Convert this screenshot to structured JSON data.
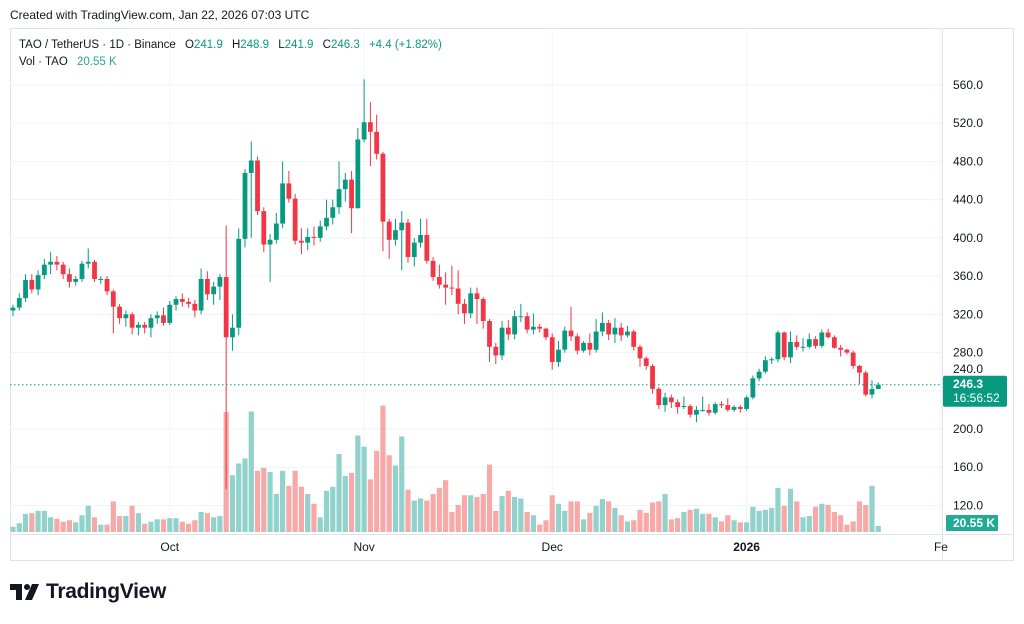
{
  "credit": "Created with TradingView.com, Jan 22, 2026 07:03 UTC",
  "legend": {
    "symbol": "TAO / TetherUS · 1D · Binance",
    "o_label": "O",
    "o": "241.9",
    "h_label": "H",
    "h": "248.9",
    "l_label": "L",
    "l": "241.9",
    "c_label": "C",
    "c": "246.3",
    "change": "+4.4 (+1.82%)",
    "vol_label": "Vol · TAO",
    "vol": "20.55 K"
  },
  "price_tag": {
    "price": "246.3",
    "countdown": "16:56:52"
  },
  "volume_tag": "20.55 K",
  "logo_text": "TradingView",
  "colors": {
    "up": "#089981",
    "down": "#F23645",
    "vol_up": "#92d2cc",
    "vol_down": "#f7a9a7",
    "grid": "#f0f3fa"
  },
  "chart_data": {
    "type": "candlestick",
    "start_date": "2025-09-06",
    "interval": "1D",
    "ylim": [
      110,
      580
    ],
    "y_ticks": [
      "560.0",
      "520.0",
      "480.0",
      "440.0",
      "400.0",
      "360.0",
      "320.0",
      "280.0",
      "240.0",
      "200.0",
      "160.0",
      "120.0"
    ],
    "x_ticks": [
      {
        "label": "Oct",
        "date": "2025-10-01",
        "bold": false
      },
      {
        "label": "Nov",
        "date": "2025-11-01",
        "bold": false
      },
      {
        "label": "Dec",
        "date": "2025-12-01",
        "bold": false
      },
      {
        "label": "2026",
        "date": "2026-01-01",
        "bold": true
      },
      {
        "label": "Fe",
        "date": "2026-02-01",
        "bold": false
      }
    ],
    "last_price": 246.3,
    "ohlc": [
      [
        324,
        330,
        318,
        327
      ],
      [
        327,
        342,
        324,
        337
      ],
      [
        337,
        362,
        333,
        356
      ],
      [
        356,
        362,
        342,
        346
      ],
      [
        346,
        366,
        340,
        361
      ],
      [
        361,
        378,
        357,
        372
      ],
      [
        372,
        385,
        362,
        375
      ],
      [
        375,
        381,
        366,
        372
      ],
      [
        372,
        375,
        357,
        362
      ],
      [
        362,
        368,
        348,
        354
      ],
      [
        354,
        360,
        350,
        357
      ],
      [
        357,
        376,
        354,
        373
      ],
      [
        373,
        389,
        368,
        375
      ],
      [
        375,
        377,
        354,
        357
      ],
      [
        357,
        360,
        352,
        357
      ],
      [
        357,
        360,
        340,
        344
      ],
      [
        344,
        346,
        300,
        328
      ],
      [
        328,
        331,
        310,
        316
      ],
      [
        316,
        324,
        307,
        320
      ],
      [
        320,
        322,
        299,
        306
      ],
      [
        306,
        312,
        298,
        309
      ],
      [
        309,
        312,
        300,
        306
      ],
      [
        306,
        320,
        296,
        316
      ],
      [
        316,
        323,
        310,
        319
      ],
      [
        319,
        327,
        308,
        311
      ],
      [
        311,
        334,
        309,
        330
      ],
      [
        330,
        339,
        324,
        336
      ],
      [
        336,
        342,
        328,
        333
      ],
      [
        333,
        337,
        327,
        331
      ],
      [
        331,
        335,
        317,
        324
      ],
      [
        324,
        368,
        320,
        357
      ],
      [
        357,
        365,
        335,
        341
      ],
      [
        341,
        354,
        330,
        349
      ],
      [
        349,
        362,
        335,
        359
      ],
      [
        359,
        413,
        137,
        296
      ],
      [
        296,
        320,
        282,
        306
      ],
      [
        306,
        410,
        298,
        399
      ],
      [
        399,
        472,
        390,
        468
      ],
      [
        468,
        501,
        400,
        481
      ],
      [
        481,
        485,
        424,
        428
      ],
      [
        428,
        432,
        385,
        393
      ],
      [
        393,
        404,
        354,
        398
      ],
      [
        398,
        426,
        394,
        415
      ],
      [
        415,
        480,
        410,
        457
      ],
      [
        457,
        470,
        437,
        441
      ],
      [
        441,
        446,
        393,
        397
      ],
      [
        397,
        410,
        383,
        395
      ],
      [
        395,
        410,
        387,
        401
      ],
      [
        401,
        412,
        392,
        400
      ],
      [
        400,
        418,
        396,
        412
      ],
      [
        412,
        440,
        408,
        421
      ],
      [
        421,
        440,
        414,
        432
      ],
      [
        432,
        480,
        425,
        451
      ],
      [
        451,
        468,
        438,
        461
      ],
      [
        461,
        470,
        405,
        431
      ],
      [
        431,
        515,
        431,
        503
      ],
      [
        503,
        566,
        500,
        521
      ],
      [
        521,
        542,
        475,
        511
      ],
      [
        511,
        529,
        482,
        488
      ],
      [
        488,
        490,
        386,
        417
      ],
      [
        417,
        420,
        378,
        398
      ],
      [
        398,
        420,
        392,
        408
      ],
      [
        408,
        428,
        366,
        416
      ],
      [
        416,
        420,
        374,
        380
      ],
      [
        380,
        400,
        370,
        395
      ],
      [
        395,
        420,
        390,
        403
      ],
      [
        403,
        420,
        373,
        376
      ],
      [
        376,
        380,
        355,
        359
      ],
      [
        359,
        372,
        347,
        351
      ],
      [
        351,
        364,
        330,
        348
      ],
      [
        348,
        371,
        340,
        347
      ],
      [
        347,
        366,
        320,
        331
      ],
      [
        331,
        336,
        310,
        321
      ],
      [
        321,
        348,
        316,
        342
      ],
      [
        342,
        348,
        310,
        336
      ],
      [
        336,
        338,
        305,
        313
      ],
      [
        313,
        315,
        270,
        286
      ],
      [
        286,
        290,
        268,
        277
      ],
      [
        277,
        313,
        272,
        306
      ],
      [
        306,
        314,
        293,
        299
      ],
      [
        299,
        324,
        294,
        318
      ],
      [
        318,
        331,
        312,
        318
      ],
      [
        318,
        322,
        300,
        304
      ],
      [
        304,
        321,
        299,
        307
      ],
      [
        307,
        310,
        301,
        305
      ],
      [
        305,
        306,
        293,
        296
      ],
      [
        296,
        300,
        262,
        270
      ],
      [
        270,
        292,
        265,
        283
      ],
      [
        283,
        307,
        280,
        303
      ],
      [
        303,
        328,
        292,
        297
      ],
      [
        297,
        300,
        278,
        282
      ],
      [
        282,
        292,
        280,
        290
      ],
      [
        290,
        300,
        277,
        283
      ],
      [
        283,
        315,
        280,
        302
      ],
      [
        302,
        322,
        297,
        311
      ],
      [
        311,
        314,
        293,
        299
      ],
      [
        299,
        316,
        290,
        306
      ],
      [
        306,
        311,
        292,
        298
      ],
      [
        298,
        308,
        296,
        302
      ],
      [
        302,
        304,
        282,
        286
      ],
      [
        286,
        288,
        265,
        274
      ],
      [
        274,
        276,
        262,
        266
      ],
      [
        266,
        268,
        237,
        242
      ],
      [
        242,
        244,
        221,
        225
      ],
      [
        225,
        238,
        218,
        233
      ],
      [
        233,
        236,
        222,
        228
      ],
      [
        228,
        231,
        216,
        223
      ],
      [
        223,
        234,
        221,
        224
      ],
      [
        224,
        226,
        212,
        215
      ],
      [
        215,
        224,
        207,
        220
      ],
      [
        220,
        234,
        218,
        220
      ],
      [
        220,
        226,
        214,
        217
      ],
      [
        217,
        228,
        215,
        226
      ],
      [
        226,
        229,
        222,
        225
      ],
      [
        225,
        232,
        218,
        220
      ],
      [
        220,
        225,
        218,
        223
      ],
      [
        223,
        225,
        217,
        221
      ],
      [
        221,
        235,
        219,
        233
      ],
      [
        233,
        256,
        231,
        253
      ],
      [
        253,
        263,
        250,
        260
      ],
      [
        260,
        276,
        258,
        272
      ],
      [
        272,
        275,
        268,
        273
      ],
      [
        273,
        303,
        270,
        301
      ],
      [
        301,
        302,
        272,
        275
      ],
      [
        275,
        302,
        269,
        291
      ],
      [
        291,
        298,
        283,
        286
      ],
      [
        286,
        295,
        281,
        286
      ],
      [
        286,
        300,
        284,
        294
      ],
      [
        294,
        297,
        284,
        287
      ],
      [
        287,
        304,
        285,
        301
      ],
      [
        301,
        305,
        295,
        296
      ],
      [
        296,
        298,
        284,
        285
      ],
      [
        285,
        288,
        276,
        283
      ],
      [
        283,
        284,
        278,
        280
      ],
      [
        280,
        282,
        263,
        266
      ],
      [
        266,
        267,
        247,
        259
      ],
      [
        259,
        261,
        234,
        236
      ],
      [
        236,
        251,
        232,
        241.9
      ],
      [
        241.9,
        248.9,
        241.9,
        246.3
      ]
    ],
    "volume_k": [
      18,
      30,
      62,
      64,
      72,
      72,
      50,
      45,
      35,
      40,
      33,
      57,
      89,
      50,
      25,
      25,
      104,
      54,
      54,
      89,
      64,
      28,
      35,
      43,
      43,
      47,
      47,
      35,
      28,
      40,
      68,
      64,
      50,
      54,
      408,
      193,
      233,
      250,
      410,
      208,
      218,
      204,
      129,
      208,
      157,
      208,
      154,
      129,
      96,
      50,
      140,
      154,
      265,
      190,
      201,
      328,
      290,
      179,
      276,
      430,
      261,
      226,
      325,
      144,
      107,
      114,
      107,
      129,
      150,
      176,
      68,
      92,
      125,
      125,
      119,
      129,
      229,
      72,
      122,
      140,
      119,
      114,
      68,
      57,
      25,
      40,
      125,
      96,
      72,
      104,
      104,
      43,
      65,
      89,
      112,
      104,
      82,
      57,
      36,
      40,
      75,
      65,
      100,
      104,
      129,
      43,
      47,
      68,
      75,
      79,
      62,
      62,
      50,
      36,
      57,
      40,
      33,
      33,
      86,
      72,
      75,
      82,
      150,
      89,
      147,
      104,
      50,
      54,
      86,
      96,
      92,
      68,
      57,
      25,
      36,
      104,
      92,
      157,
      20.55
    ]
  }
}
